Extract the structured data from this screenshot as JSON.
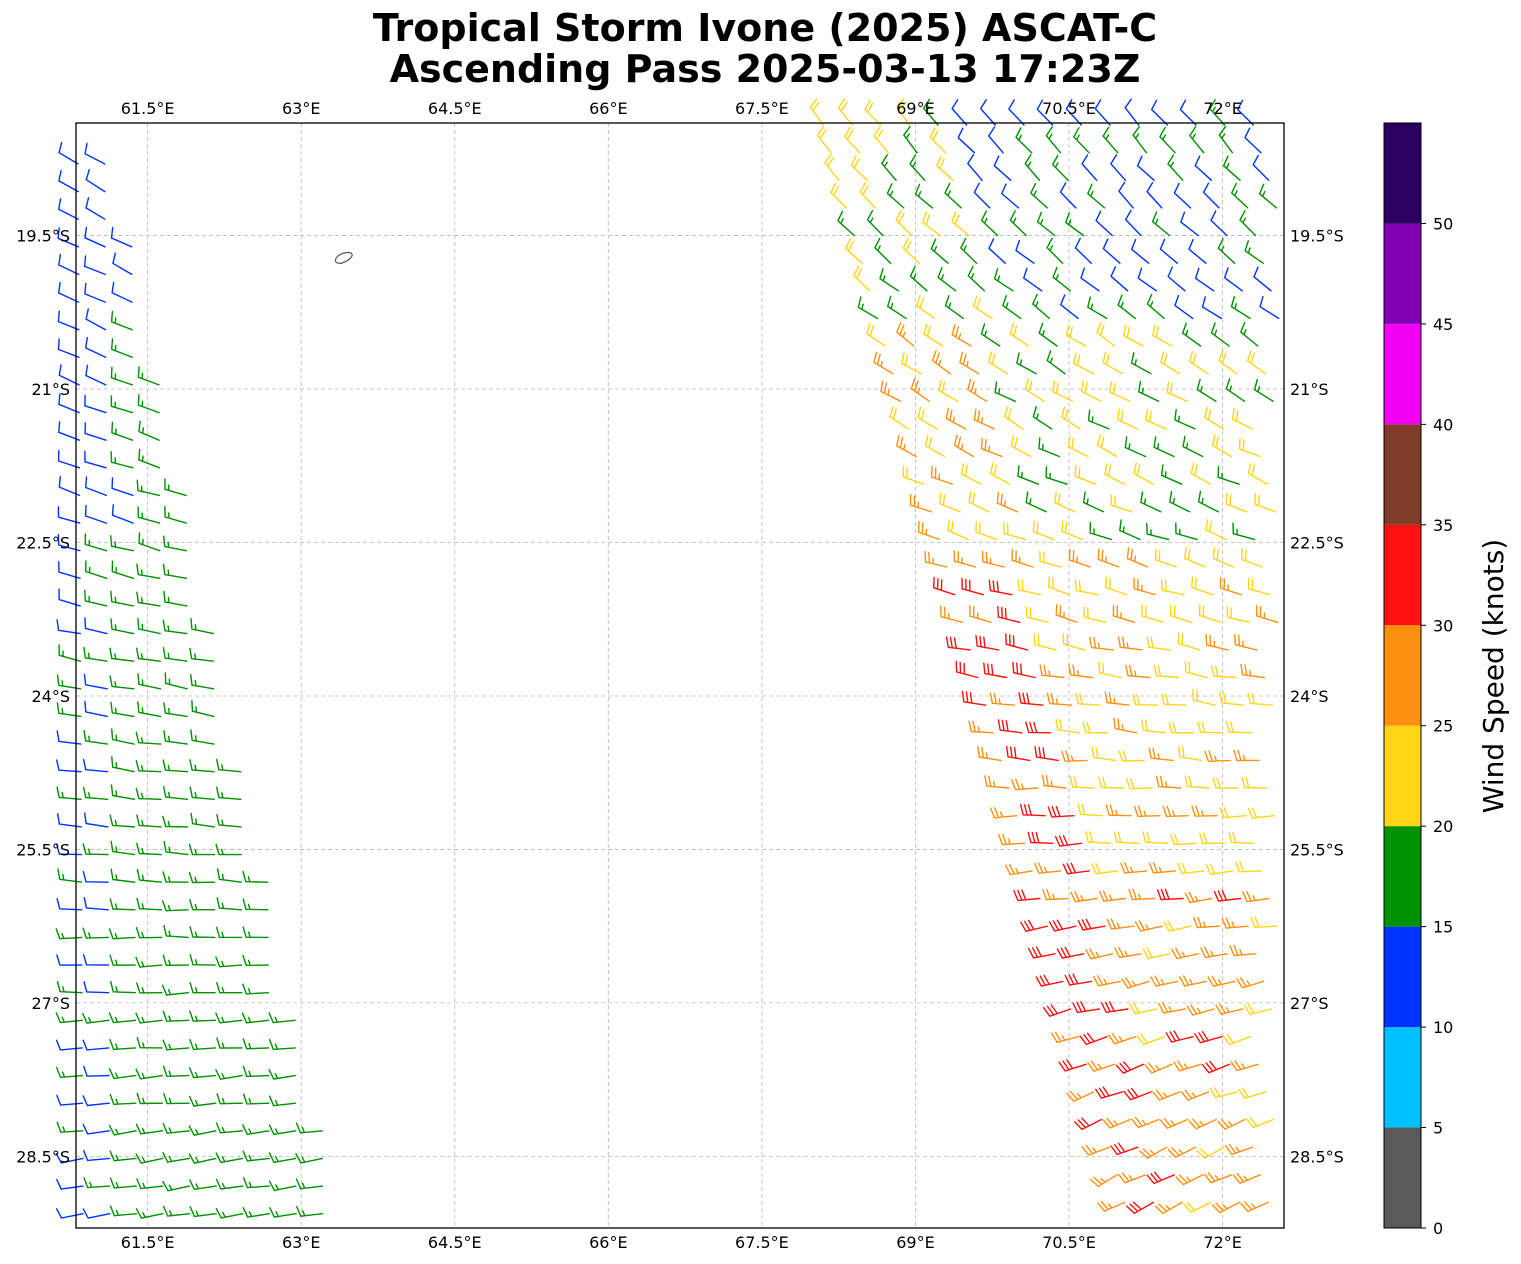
{
  "title_line1": "Tropical Storm Ivone (2025) ASCAT-C",
  "title_line2": "Ascending Pass 2025-03-13 17:23Z",
  "map": {
    "lon_range": [
      60.8,
      72.6
    ],
    "lat_range": [
      -29.2,
      -18.4
    ],
    "grid": true,
    "lon_ticks": [
      61.5,
      63,
      64.5,
      66,
      67.5,
      69,
      70.5,
      72
    ],
    "lon_tick_labels": [
      "61.5°E",
      "63°E",
      "64.5°E",
      "66°E",
      "67.5°E",
      "69°E",
      "70.5°E",
      "72°E"
    ],
    "lat_ticks": [
      -19.5,
      -21,
      -22.5,
      -24,
      -25.5,
      -27,
      -28.5
    ],
    "lat_tick_labels": [
      "19.5°S",
      "21°S",
      "22.5°S",
      "24°S",
      "25.5°S",
      "27°S",
      "28.5°S"
    ],
    "coastline": "small island outline near 63.4°E, 19.7°S"
  },
  "colorbar": {
    "label": "Wind Speed (knots)",
    "ticks": [
      0,
      5,
      10,
      15,
      20,
      25,
      30,
      35,
      40,
      45,
      50
    ],
    "tick_labels": [
      "0",
      "5",
      "10",
      "15",
      "20",
      "25",
      "30",
      "35",
      "40",
      "45",
      "50"
    ],
    "max": 55,
    "bins": [
      {
        "min": 0,
        "max": 5,
        "color": "#5a5a5a"
      },
      {
        "min": 5,
        "max": 10,
        "color": "#00bfff"
      },
      {
        "min": 10,
        "max": 15,
        "color": "#0033ff"
      },
      {
        "min": 15,
        "max": 20,
        "color": "#009100"
      },
      {
        "min": 20,
        "max": 25,
        "color": "#ffd515"
      },
      {
        "min": 25,
        "max": 30,
        "color": "#ff9010"
      },
      {
        "min": 30,
        "max": 35,
        "color": "#ff1010"
      },
      {
        "min": 35,
        "max": 40,
        "color": "#7f3c28"
      },
      {
        "min": 40,
        "max": 45,
        "color": "#f200f2"
      },
      {
        "min": 45,
        "max": 50,
        "color": "#8000b3"
      },
      {
        "min": 50,
        "max": 55,
        "color": "#2a0060"
      }
    ]
  },
  "wind_field": {
    "representation": "wind barbs, coloured by speed bin",
    "swaths": [
      {
        "name": "western swath",
        "lon_range": [
          60.8,
          63.4
        ],
        "lat_range": [
          -29.2,
          -18.8
        ],
        "speed_range_kt": [
          10,
          20
        ],
        "dominant_direction": "northwesterly in north turning west-southwesterly in south"
      },
      {
        "name": "eastern swath",
        "lon_range": [
          67.8,
          72.6
        ],
        "lat_range": [
          -29.2,
          -18.4
        ],
        "speed_range_kt": [
          5,
          35
        ],
        "dominant_direction": "northwesterly in north turning southwesterly to westerly in south; strongest (30-35 kt) near 69.5-71.5°E, 23-28.5°S"
      }
    ]
  }
}
